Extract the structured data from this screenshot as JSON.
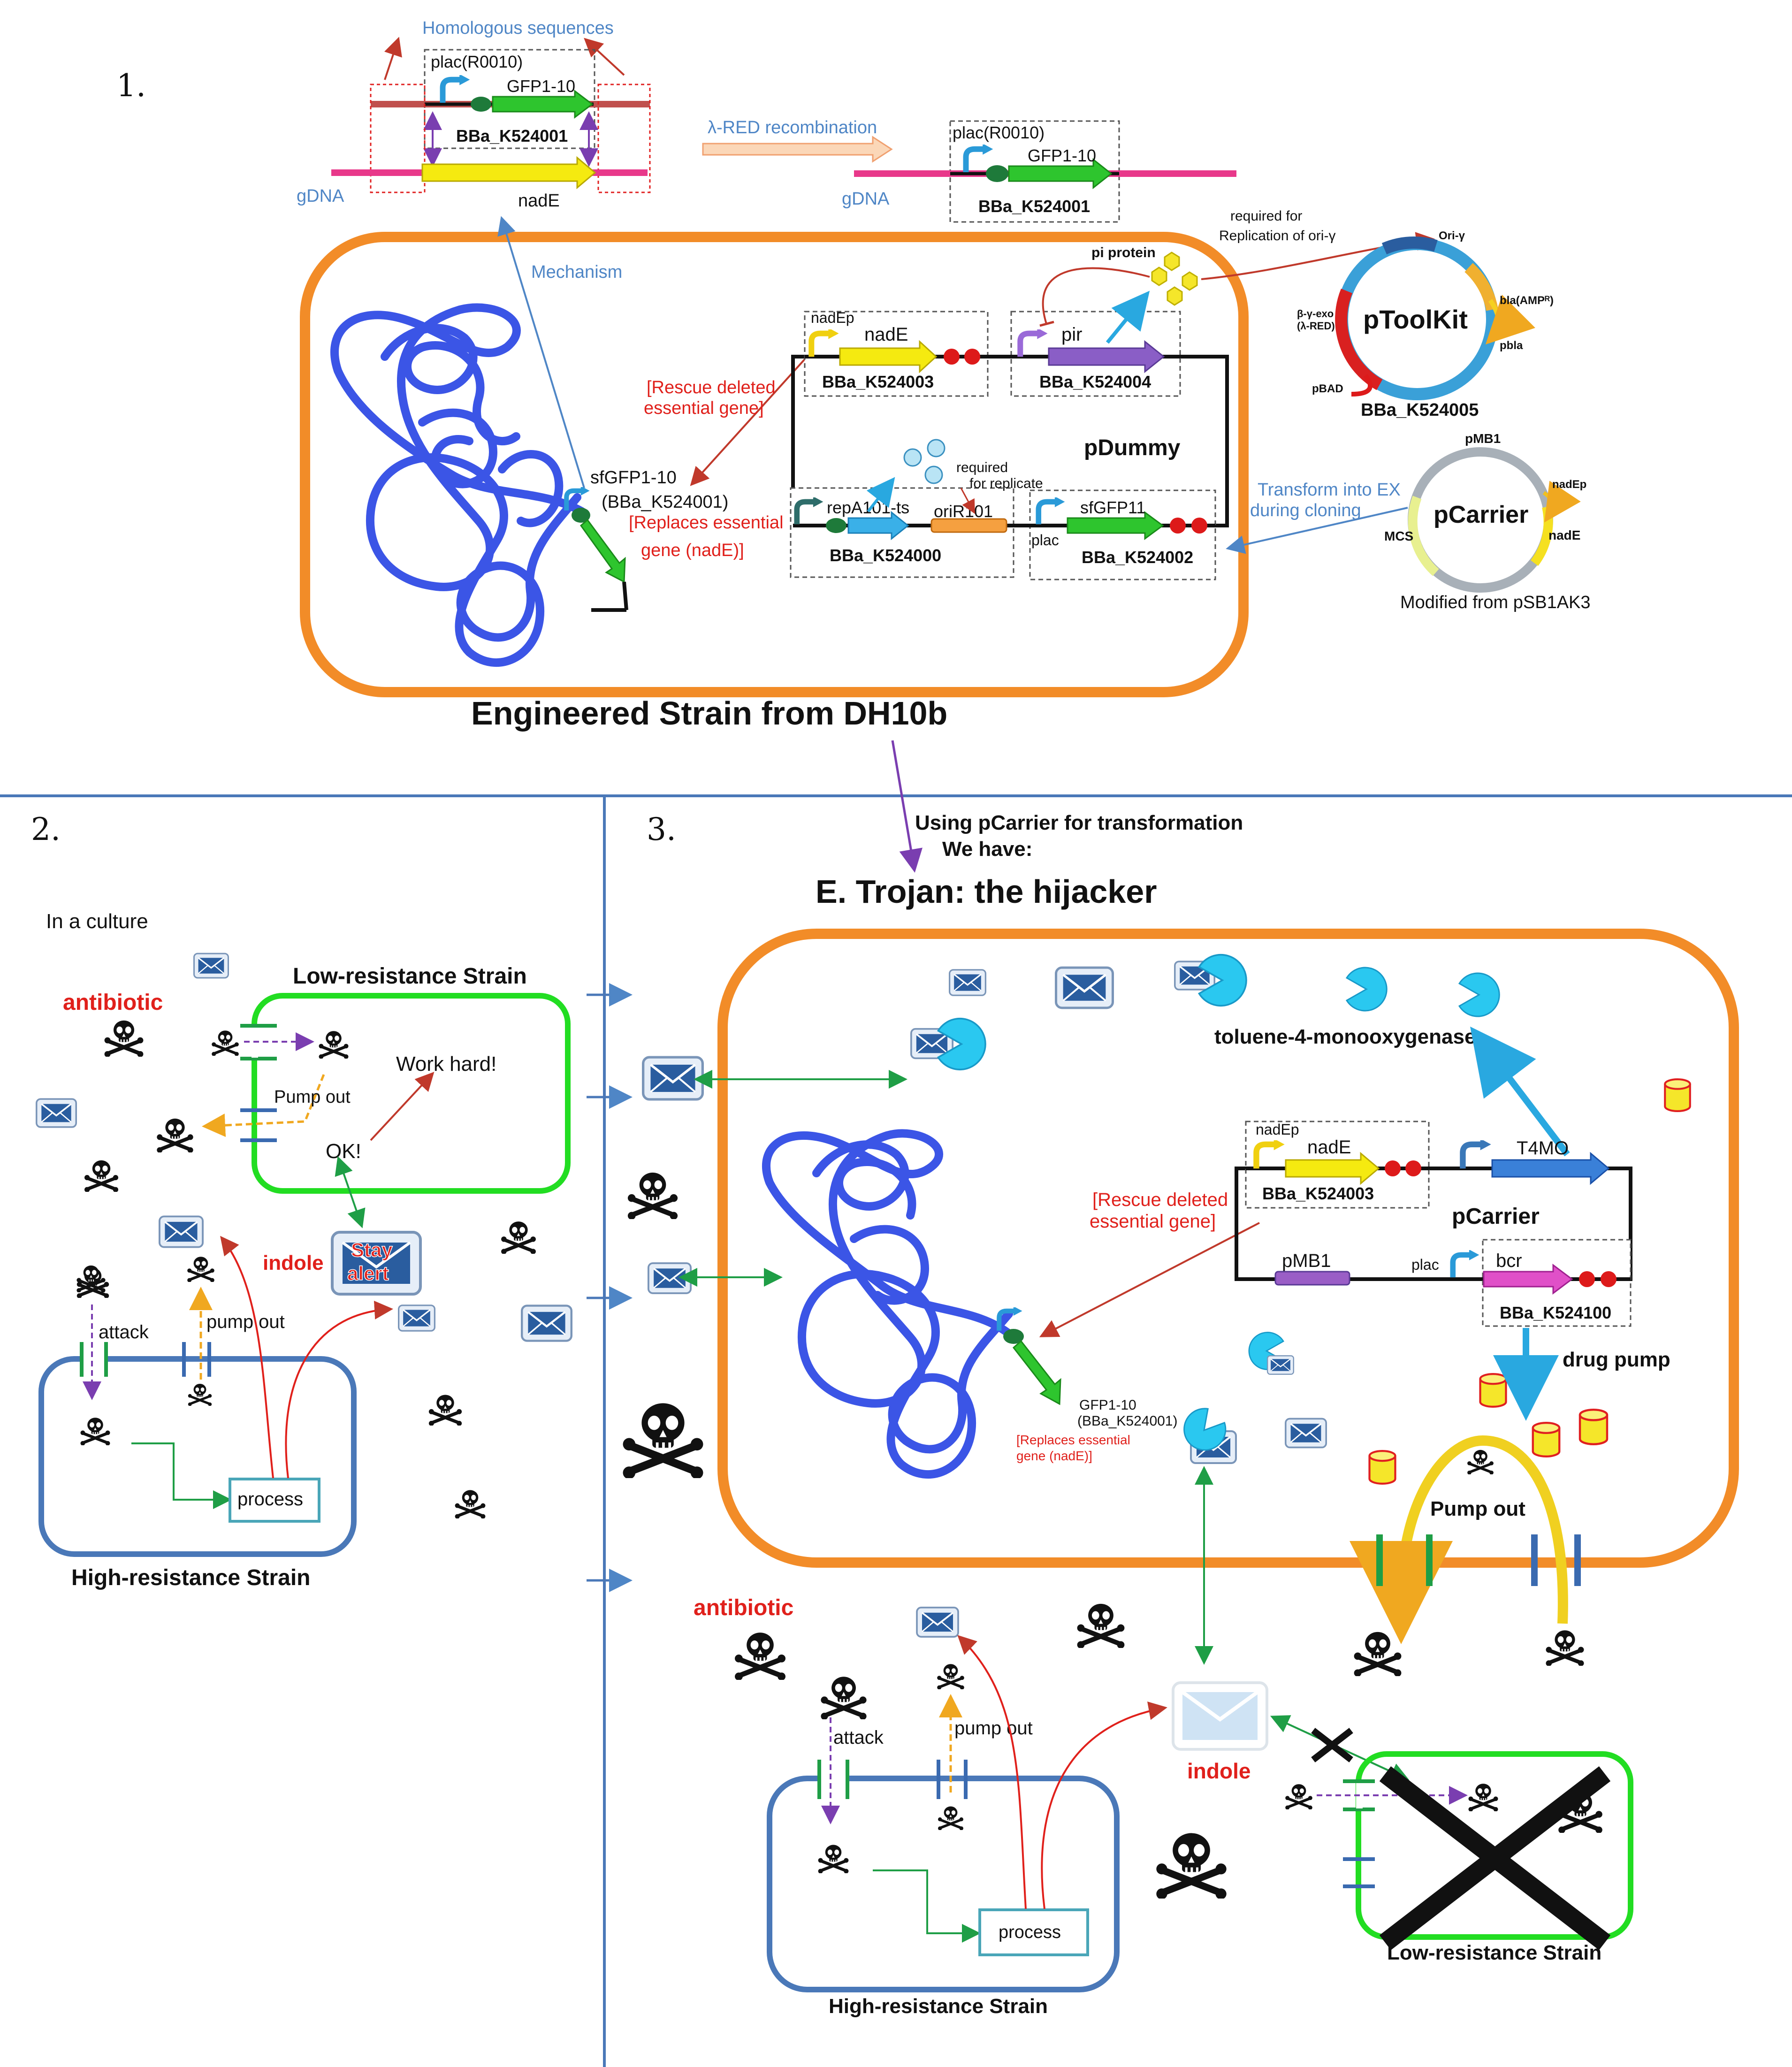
{
  "panel_numbers": {
    "p1": "1.",
    "p2": "2.",
    "p3": "3."
  },
  "colors": {
    "orange": "#f28c28",
    "green": "#22dd22",
    "blue_cell": "#4a78b8",
    "dna_blue": "#3b55e6",
    "red_label": "#e0201b",
    "light_blue_label": "#4f86c6",
    "pink_dna": "#e8388a",
    "yellow_gene": "#f5ea10",
    "green_gene": "#2ec52e",
    "purple_gene": "#8a5ec6",
    "cyan_gene": "#3ab0e8"
  },
  "panel1": {
    "homologous": "Homologous sequences",
    "plac_r0010": "plac(R0010)",
    "gfp1_10": "GFP1-10",
    "bba_k524001": "BBa_K524001",
    "nade": "nadE",
    "gdna": "gDNA",
    "lambda_red": "λ-RED recombination",
    "plac_r0010_2": "plac(R0010)",
    "gfp1_10_2": "GFP1-10",
    "bba_k524001_2": "BBa_K524001",
    "gdna_2": "gDNA",
    "mechanism": "Mechanism",
    "nadep": "nadEp",
    "nade_2": "nadE",
    "bba_k524003": "BBa_K524003",
    "pir": "pir",
    "bba_k524004": "BBa_K524004",
    "pi_protein": "pi protein",
    "required_for": "required for",
    "replication_ori": "Replication of ori-γ",
    "rescue_1": "[Rescue deleted",
    "rescue_2": "essential gene]",
    "pdummy": "pDummy",
    "sfgfp1_10": "sfGFP1-10",
    "sfgfp1_10_bb": "(BBa_K524001)",
    "replaces_1": "[Replaces essential",
    "replaces_2": "gene (nadE)]",
    "required_rep_1": "required",
    "required_rep_2": "for replicate",
    "repa101": "repA101-ts",
    "orir101": "oriR101",
    "bba_k524000": "BBa_K524000",
    "plac": "plac",
    "sfgfp11": "sfGFP11",
    "bba_k524002": "BBa_K524002",
    "ptoolkit": "pToolKit",
    "ori_y": "Ori-γ",
    "bla": "bla(AMPᴿ)",
    "pbla": "pbla",
    "beta_exo_1": "β-γ-exo",
    "beta_exo_2": "(λ-RED)",
    "pbad": "pBAD",
    "bba_k524005": "BBa_K524005",
    "transform_1": "Transform into EX",
    "transform_2": "during cloning",
    "pcarrier": "pCarrier",
    "pmb1": "pMB1",
    "nadep_c": "nadEp",
    "mcs": "MCS",
    "nade_c": "nadE",
    "modified": "Modified from pSB1AK3",
    "engineered": "Engineered Strain from DH10b"
  },
  "panel2": {
    "in_culture": "In a culture",
    "antibiotic": "antibiotic",
    "low_res": "Low-resistance Strain",
    "pump_out": "Pump out",
    "work_hard": "Work hard!",
    "ok": "OK!",
    "indole": "indole",
    "stay": "Stay",
    "alert": "alert",
    "attack": "attack",
    "pump_out_2": "pump out",
    "process": "process",
    "high_res": "High-resistance Strain"
  },
  "panel3": {
    "using_1": "Using pCarrier for transformation",
    "using_2": "We have:",
    "title": "E. Trojan: the hijacker",
    "toluene": "toluene-4-monooxygenase",
    "nadep": "nadEp",
    "nade": "nadE",
    "bba_k524003": "BBa_K524003",
    "t4mo": "T4MO",
    "pcarrier": "pCarrier",
    "rescue_1": "[Rescue deleted",
    "rescue_2": "essential gene]",
    "pmb1": "pMB1",
    "plac": "plac",
    "bcr": "bcr",
    "bba_k524100": "BBa_K524100",
    "drug_pump": "drug pump",
    "gfp1_10": "GFP1-10",
    "gfp_bb": "(BBa_K524001)",
    "replaces_1": "[Replaces essential",
    "replaces_2": "gene (nadE)]",
    "pump_out": "Pump out",
    "antibiotic": "antibiotic",
    "attack": "attack",
    "pump_out_2": "pump out",
    "process": "process",
    "high_res": "High-resistance Strain",
    "indole": "indole",
    "low_res": "Low-resistance Strain"
  }
}
